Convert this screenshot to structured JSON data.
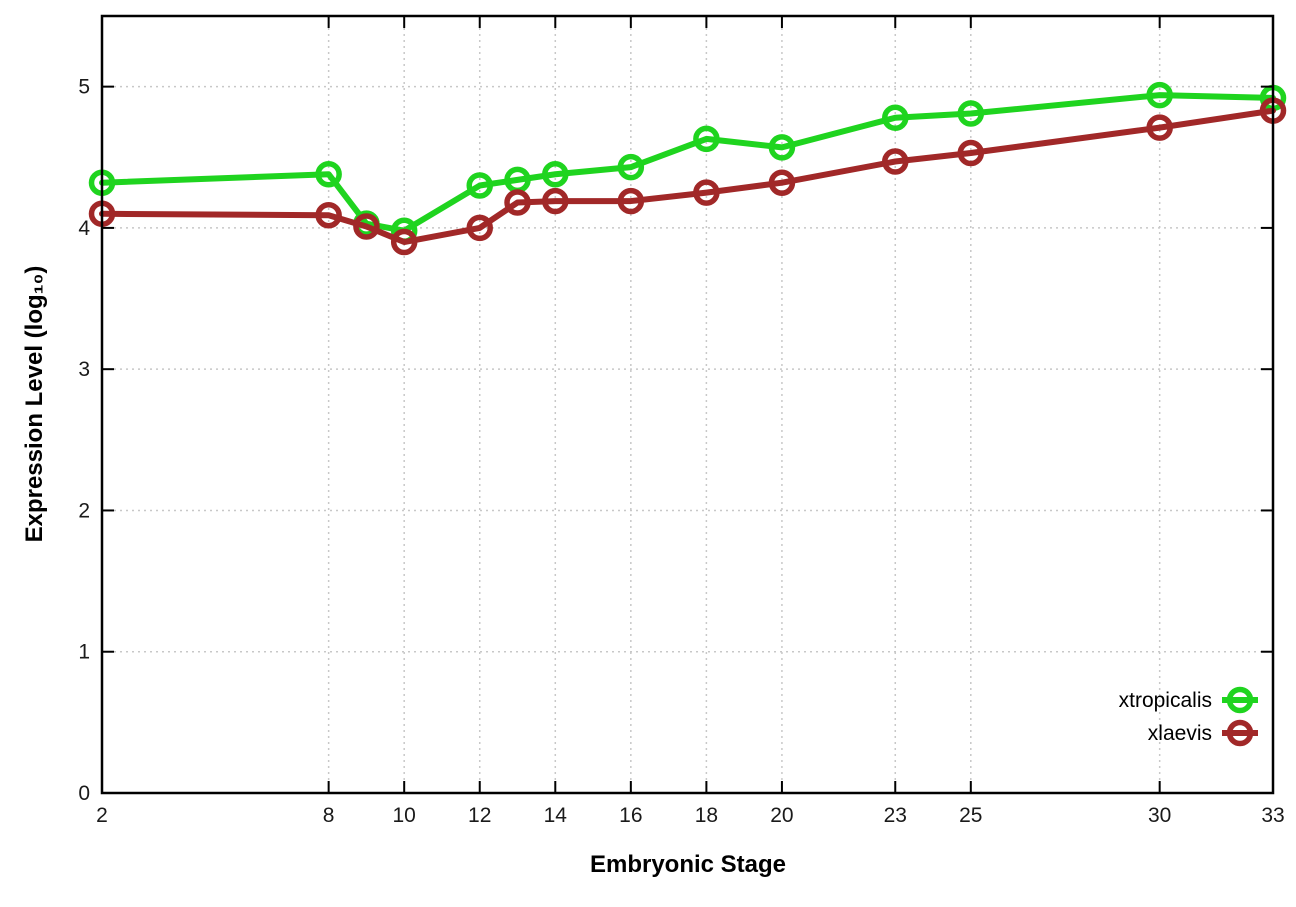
{
  "chart_data": {
    "type": "line",
    "x": [
      2,
      8,
      9,
      10,
      12,
      13,
      14,
      16,
      18,
      20,
      23,
      25,
      30,
      33
    ],
    "series": [
      {
        "name": "xtropicalis",
        "color": "#1fd41f",
        "values": [
          4.32,
          4.38,
          4.03,
          3.98,
          4.3,
          4.34,
          4.38,
          4.43,
          4.63,
          4.57,
          4.78,
          4.81,
          4.94,
          4.92
        ]
      },
      {
        "name": "xlaevis",
        "color": "#a12828",
        "values": [
          4.1,
          4.09,
          4.01,
          3.9,
          4.0,
          4.18,
          4.19,
          4.19,
          4.25,
          4.32,
          4.47,
          4.53,
          4.71,
          4.83
        ]
      }
    ],
    "xlabel": "Embryonic Stage",
    "ylabel": "Expression Level (log₁₀)",
    "xlim": [
      2,
      33
    ],
    "ylim": [
      0,
      5.5
    ],
    "xticks": [
      2,
      8,
      10,
      12,
      14,
      16,
      18,
      20,
      23,
      25,
      30,
      33
    ],
    "yticks": [
      0,
      1,
      2,
      3,
      4,
      5
    ],
    "grid": true,
    "legend_position": "bottom-right",
    "style": {
      "background": "#ffffff",
      "border_color": "#000000",
      "grid_color": "#c8c8c8",
      "tick_label_color": "#1a1a1a",
      "line_width": 6,
      "marker": "open-circle"
    }
  }
}
